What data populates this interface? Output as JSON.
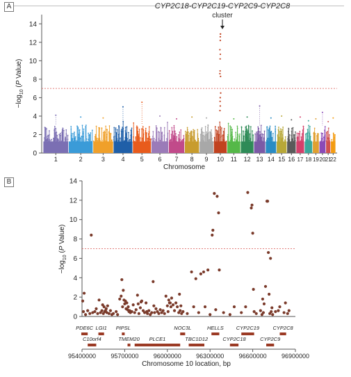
{
  "panel_a_letter": "A",
  "panel_b_letter": "B",
  "chart_data": [
    {
      "type": "scatter",
      "subtype": "manhattan",
      "panel": "A",
      "annotation": {
        "line1": "CYP2C18-CYP2C19-CYP2C9-CYP2C8",
        "line2": "cluster",
        "chromosome": "10"
      },
      "xlabel": "Chromosome",
      "ylabel": "−log10(P Value)",
      "ylabel_parts": {
        "prefix": "−log",
        "sub": "10",
        "middle": " (",
        "italic": "P",
        "suffix": " Value)"
      },
      "ylim": [
        0,
        15
      ],
      "yticks": [
        0,
        2,
        4,
        6,
        8,
        10,
        12,
        14
      ],
      "threshold": 7,
      "chromosomes": [
        "1",
        "2",
        "3",
        "4",
        "5",
        "6",
        "7",
        "8",
        "9",
        "10",
        "11",
        "12",
        "13",
        "14",
        "15",
        "16",
        "17",
        "18",
        "19",
        "20",
        "21",
        "22"
      ],
      "chromosome_max_neglog10p": [
        4.1,
        3.9,
        3.8,
        5.0,
        5.5,
        4.0,
        3.7,
        3.9,
        3.8,
        12.9,
        3.7,
        3.9,
        5.1,
        3.8,
        4.0,
        3.6,
        3.9,
        3.5,
        3.7,
        4.4,
        3.4,
        3.8
      ],
      "chromosome_colors": [
        "#7b6fb3",
        "#3a9bd8",
        "#f0a02a",
        "#1f5fa8",
        "#e85b1c",
        "#9b7bb8",
        "#c14a8a",
        "#c89c2e",
        "#a8a8a8",
        "#c1421f",
        "#55b848",
        "#2e8b57",
        "#7b5aa6",
        "#2a8cc4",
        "#b8a837",
        "#5a5a5a",
        "#d4406b",
        "#3aa89b",
        "#e0a030",
        "#8a4ab8",
        "#d05050",
        "#f39c12"
      ]
    },
    {
      "type": "scatter",
      "panel": "B",
      "xlabel": "Chromosome 10 location, bp",
      "ylabel": "−log10(P Value)",
      "ylim": [
        0,
        14
      ],
      "yticks": [
        0,
        2,
        4,
        6,
        8,
        10,
        12,
        14
      ],
      "xlim": [
        95400000,
        96900000
      ],
      "xticks": [
        95400000,
        95700000,
        96000000,
        96300000,
        96600000,
        96900000
      ],
      "xtick_labels": [
        "95400000",
        "95700000",
        "96000000",
        "96300000",
        "96600000",
        "96900000"
      ],
      "threshold": 7,
      "point_color": "#7a3a2a",
      "points": [
        [
          95405000,
          1.6
        ],
        [
          95410000,
          0.5
        ],
        [
          95415000,
          2.4
        ],
        [
          95425000,
          0.2
        ],
        [
          95440000,
          0.6
        ],
        [
          95455000,
          0.3
        ],
        [
          95465000,
          8.4
        ],
        [
          95475000,
          0.4
        ],
        [
          95490000,
          0.5
        ],
        [
          95500000,
          0.8
        ],
        [
          95510000,
          0.3
        ],
        [
          95520000,
          1.7
        ],
        [
          95530000,
          0.4
        ],
        [
          95540000,
          0.6
        ],
        [
          95545000,
          1.2
        ],
        [
          95550000,
          0.3
        ],
        [
          95555000,
          1.0
        ],
        [
          95560000,
          0.5
        ],
        [
          95565000,
          0.6
        ],
        [
          95570000,
          0.8
        ],
        [
          95575000,
          0.4
        ],
        [
          95580000,
          1.1
        ],
        [
          95590000,
          0.3
        ],
        [
          95600000,
          0.6
        ],
        [
          95610000,
          0.2
        ],
        [
          95620000,
          0.3
        ],
        [
          95640000,
          0.5
        ],
        [
          95650000,
          0.2
        ],
        [
          95665000,
          1.8
        ],
        [
          95675000,
          2.1
        ],
        [
          95680000,
          3.8
        ],
        [
          95685000,
          1.0
        ],
        [
          95690000,
          2.7
        ],
        [
          95695000,
          1.7
        ],
        [
          95700000,
          1.3
        ],
        [
          95705000,
          1.6
        ],
        [
          95710000,
          0.8
        ],
        [
          95715000,
          1.4
        ],
        [
          95720000,
          0.7
        ],
        [
          95725000,
          1.0
        ],
        [
          95730000,
          0.5
        ],
        [
          95735000,
          0.6
        ],
        [
          95740000,
          0.4
        ],
        [
          95750000,
          0.5
        ],
        [
          95760000,
          1.2
        ],
        [
          95770000,
          0.4
        ],
        [
          95780000,
          0.7
        ],
        [
          95790000,
          2.2
        ],
        [
          95795000,
          1.3
        ],
        [
          95800000,
          0.3
        ],
        [
          95810000,
          0.9
        ],
        [
          95815000,
          1.5
        ],
        [
          95820000,
          1.6
        ],
        [
          95830000,
          0.6
        ],
        [
          95840000,
          0.4
        ],
        [
          95850000,
          1.4
        ],
        [
          95855000,
          0.5
        ],
        [
          95860000,
          0.3
        ],
        [
          95870000,
          0.6
        ],
        [
          95880000,
          0.2
        ],
        [
          95890000,
          0.4
        ],
        [
          95900000,
          3.6
        ],
        [
          95905000,
          1.1
        ],
        [
          95910000,
          0.4
        ],
        [
          95920000,
          0.8
        ],
        [
          95930000,
          0.5
        ],
        [
          95940000,
          0.3
        ],
        [
          95950000,
          0.7
        ],
        [
          95960000,
          0.4
        ],
        [
          95970000,
          0.6
        ],
        [
          95980000,
          0.3
        ],
        [
          95990000,
          2.1
        ],
        [
          96000000,
          1.1
        ],
        [
          96005000,
          0.5
        ],
        [
          96010000,
          1.7
        ],
        [
          96015000,
          1.4
        ],
        [
          96020000,
          1.4
        ],
        [
          96025000,
          1.0
        ],
        [
          96030000,
          1.9
        ],
        [
          96040000,
          1.2
        ],
        [
          96050000,
          0.6
        ],
        [
          96060000,
          1.4
        ],
        [
          96070000,
          1.0
        ],
        [
          96080000,
          0.4
        ],
        [
          96085000,
          2.3
        ],
        [
          96090000,
          0.6
        ],
        [
          96095000,
          1.1
        ],
        [
          96100000,
          0.3
        ],
        [
          96110000,
          0.5
        ],
        [
          96140000,
          0.3
        ],
        [
          96170000,
          4.6
        ],
        [
          96185000,
          1.0
        ],
        [
          96200000,
          3.9
        ],
        [
          96220000,
          0.4
        ],
        [
          96235000,
          4.4
        ],
        [
          96255000,
          4.6
        ],
        [
          96265000,
          1.0
        ],
        [
          96285000,
          4.8
        ],
        [
          96300000,
          0.2
        ],
        [
          96315000,
          8.4
        ],
        [
          96320000,
          8.9
        ],
        [
          96330000,
          12.7
        ],
        [
          96340000,
          0.7
        ],
        [
          96350000,
          12.4
        ],
        [
          96360000,
          10.7
        ],
        [
          96365000,
          4.8
        ],
        [
          96395000,
          0.4
        ],
        [
          96440000,
          0.2
        ],
        [
          96470000,
          1.0
        ],
        [
          96520000,
          0.4
        ],
        [
          96550000,
          1.0
        ],
        [
          96565000,
          12.8
        ],
        [
          96590000,
          11.2
        ],
        [
          96595000,
          11.5
        ],
        [
          96600000,
          8.6
        ],
        [
          96605000,
          2.8
        ],
        [
          96610000,
          0.5
        ],
        [
          96625000,
          0.3
        ],
        [
          96655000,
          0.6
        ],
        [
          96665000,
          0.2
        ],
        [
          96670000,
          1.8
        ],
        [
          96675000,
          0.4
        ],
        [
          96680000,
          1.3
        ],
        [
          96690000,
          3.1
        ],
        [
          96700000,
          11.9
        ],
        [
          96705000,
          11.9
        ],
        [
          96710000,
          6.6
        ],
        [
          96715000,
          2.3
        ],
        [
          96720000,
          0.3
        ],
        [
          96725000,
          6.0
        ],
        [
          96730000,
          0.5
        ],
        [
          96735000,
          0.9
        ],
        [
          96740000,
          0.2
        ],
        [
          96760000,
          0.5
        ],
        [
          96780000,
          0.6
        ],
        [
          96790000,
          1.0
        ],
        [
          96820000,
          0.4
        ],
        [
          96830000,
          1.4
        ],
        [
          96845000,
          0.3
        ],
        [
          96855000,
          0.6
        ]
      ],
      "genes": [
        {
          "name": "PDE6C",
          "row": 1,
          "start": 95395000,
          "end": 95440000
        },
        {
          "name": "LGI1",
          "row": 1,
          "start": 95515000,
          "end": 95555000
        },
        {
          "name": "PIPSL",
          "row": 1,
          "start": 95680000,
          "end": 95700000
        },
        {
          "name": "NOC3L",
          "row": 1,
          "start": 96090000,
          "end": 96125000
        },
        {
          "name": "HELLS",
          "row": 1,
          "start": 96310000,
          "end": 96365000
        },
        {
          "name": "CYP2C19",
          "row": 1,
          "start": 96520000,
          "end": 96610000
        },
        {
          "name": "CYP2C8",
          "row": 1,
          "start": 96790000,
          "end": 96835000
        },
        {
          "name": "C10orf4",
          "row": 2,
          "start": 95440000,
          "end": 95500000
        },
        {
          "name": "TMEM20",
          "row": 2,
          "start": 95720000,
          "end": 95740000
        },
        {
          "name": "PLCE1",
          "row": 2,
          "start": 95770000,
          "end": 96090000
        },
        {
          "name": "TBC1D12",
          "row": 2,
          "start": 96150000,
          "end": 96260000
        },
        {
          "name": "CYP2C18",
          "row": 2,
          "start": 96440000,
          "end": 96500000
        },
        {
          "name": "CYP2C9",
          "row": 2,
          "start": 96695000,
          "end": 96750000
        }
      ]
    }
  ]
}
